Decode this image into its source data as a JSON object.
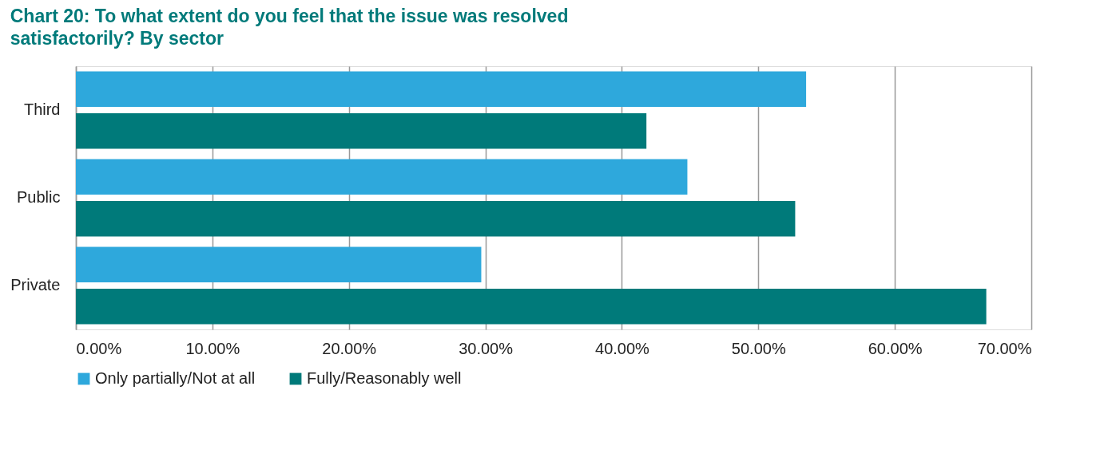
{
  "chart_data": {
    "type": "bar",
    "orientation": "horizontal",
    "title": "Chart 20: To what extent do you feel that the issue was resolved satisfactorily? By sector",
    "categories": [
      "Third",
      "Public",
      "Private"
    ],
    "series": [
      {
        "name": "Only partially/Not at all",
        "color": "#2ea8dc",
        "values": [
          53.5,
          44.8,
          29.7
        ]
      },
      {
        "name": "Fully/Reasonably well",
        "color": "#007a7a",
        "values": [
          41.8,
          52.7,
          66.7
        ]
      }
    ],
    "xlim": [
      0,
      70
    ],
    "xticks": [
      {
        "value": 0,
        "label": "0.00%"
      },
      {
        "value": 10,
        "label": "10.00%"
      },
      {
        "value": 20,
        "label": "20.00%"
      },
      {
        "value": 30,
        "label": "30.00%"
      },
      {
        "value": 40,
        "label": "40.00%"
      },
      {
        "value": 50,
        "label": "50.00%"
      },
      {
        "value": 60,
        "label": "60.00%"
      },
      {
        "value": 70,
        "label": "70.00%"
      }
    ],
    "grid": "x",
    "legend": "bottom"
  }
}
